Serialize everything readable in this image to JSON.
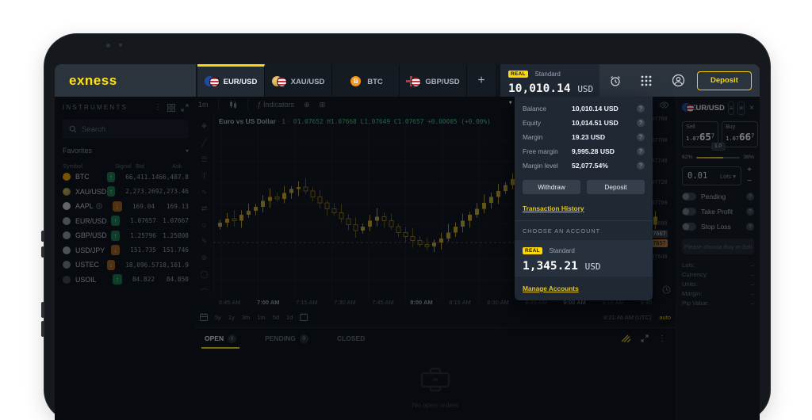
{
  "header": {
    "logo": "exness",
    "tabs": [
      {
        "label": "EUR/USD"
      },
      {
        "label": "XAU/USD"
      },
      {
        "label": "BTC"
      },
      {
        "label": "GBP/USD"
      }
    ],
    "add_tab": "+",
    "account_summary": {
      "badge": "REAL",
      "type": "Standard",
      "balance": "10,010.14",
      "currency": "USD",
      "caret": "▾"
    },
    "deposit_label": "Deposit"
  },
  "sidebar": {
    "title": "INSTRUMENTS",
    "search_placeholder": "Search",
    "filter_label": "Favorites",
    "columns": {
      "symbol": "Symbol",
      "signal": "Signal",
      "bid": "Bid",
      "ask": "Ask"
    },
    "rows": [
      {
        "symbol": "BTC",
        "bid": "66,411.14",
        "ask": "66,487.8"
      },
      {
        "symbol": "XAU/USD",
        "bid": "2,273.269",
        "ask": "2,273.46"
      },
      {
        "symbol": "AAPL",
        "bid": "169.04",
        "ask": "169.13"
      },
      {
        "symbol": "EUR/USD",
        "bid": "1.07657",
        "ask": "1.07667"
      },
      {
        "symbol": "GBP/USD",
        "bid": "1.25796",
        "ask": "1.25808"
      },
      {
        "symbol": "USD/JPY",
        "bid": "151.735",
        "ask": "151.746"
      },
      {
        "symbol": "USTEC",
        "bid": "18,096.57",
        "ask": "18,101.9"
      },
      {
        "symbol": "USOIL",
        "bid": "84.822",
        "ask": "84.850"
      }
    ]
  },
  "chart": {
    "timeframe": "1m",
    "indicators_label": "Indicators",
    "legend": {
      "title": "Euro vs US Dollar",
      "interval": "· 1 ·",
      "ohlc": "O1.07652  H1.07668  L1.07649  C1.07657  +0.00005 (+0.00%)"
    },
    "price_axis": [
      "1.07780",
      "1.07760",
      "1.07740",
      "1.07720",
      "1.07700",
      "1.07680",
      "1.07640"
    ],
    "ask_tag": "1.07667",
    "bid_tag": "1.07657",
    "time_axis": [
      "6:45 AM",
      "7:00 AM",
      "7:15 AM",
      "7:30 AM",
      "7:45 AM",
      "8:00 AM",
      "8:15 AM",
      "8:30 AM",
      "8:45 AM",
      "9:00 AM",
      "9:15 AM",
      "9:30"
    ],
    "ranges": [
      "5y",
      "1y",
      "3m",
      "1m",
      "5d",
      "1d"
    ],
    "clock": "9:21:46 AM (UTC)",
    "auto_label": "auto"
  },
  "account_menu": {
    "rows": [
      {
        "label": "Balance",
        "value": "10,010.14 USD"
      },
      {
        "label": "Equity",
        "value": "10,014.51 USD"
      },
      {
        "label": "Margin",
        "value": "19.23 USD"
      },
      {
        "label": "Free margin",
        "value": "9,995.28 USD"
      },
      {
        "label": "Margin level",
        "value": "52,077.54%"
      }
    ],
    "withdraw_label": "Withdraw",
    "deposit_label": "Deposit",
    "transaction_history_label": "Transaction History",
    "choose_account_label": "CHOOSE AN ACCOUNT",
    "account": {
      "badge": "REAL",
      "type": "Standard",
      "balance": "1,345.21",
      "currency": "USD"
    },
    "manage_accounts_label": "Manage Accounts"
  },
  "order_panel": {
    "symbol": "EUR/USD",
    "sell": {
      "label": "Sell",
      "prefix": "1.07",
      "big": "65",
      "sup": "7"
    },
    "buy": {
      "label": "Buy",
      "prefix": "1.07",
      "big": "66",
      "sup": "7"
    },
    "spread": "1.0",
    "sentiment": {
      "sell_pct": "62%",
      "buy_pct": "38%",
      "sell_ratio": 62
    },
    "volume": "0.01",
    "volume_unit": "Lots",
    "toggles": [
      {
        "label": "Pending"
      },
      {
        "label": "Take Profit"
      },
      {
        "label": "Stop Loss"
      }
    ],
    "submit_label": "Please choose Buy or Sell",
    "details": [
      {
        "label": "Lots:",
        "value": "–"
      },
      {
        "label": "Currency:",
        "value": "–"
      },
      {
        "label": "Units:",
        "value": "–"
      },
      {
        "label": "Margin:",
        "value": "–"
      },
      {
        "label": "Pip Value:",
        "value": "–"
      }
    ]
  },
  "orders_panel": {
    "tabs": [
      {
        "label": "OPEN",
        "badge": "0"
      },
      {
        "label": "PENDING",
        "badge": "0"
      },
      {
        "label": "CLOSED",
        "badge": ""
      }
    ],
    "empty_text": "No open orders"
  },
  "colors": {
    "accent": "#ffd60a",
    "green": "#1f7a4d",
    "orange": "#a2611f",
    "bid_tag": "#c97b2d"
  }
}
